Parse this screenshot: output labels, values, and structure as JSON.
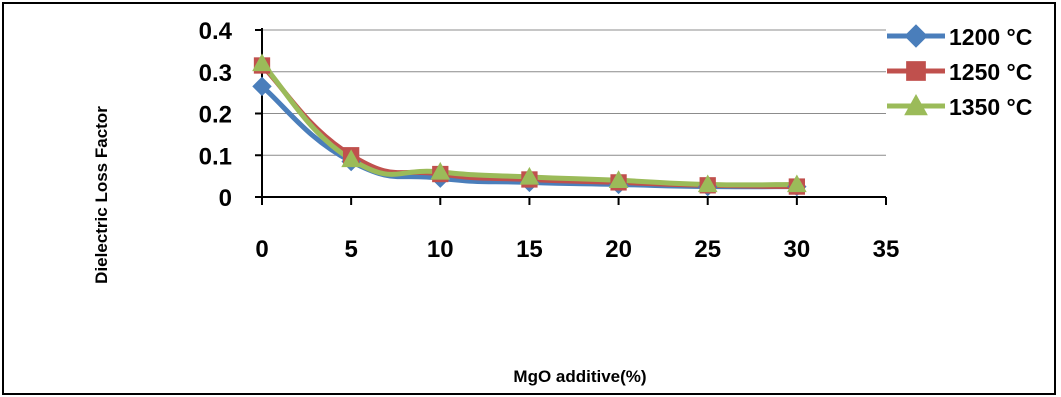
{
  "chart_data": {
    "type": "line",
    "title": "",
    "xlabel": "MgO additive(%)",
    "ylabel": "Dielectric Loss Factor",
    "xlim": [
      0,
      35
    ],
    "ylim": [
      0,
      0.4
    ],
    "x_ticks": [
      "0",
      "5",
      "10",
      "15",
      "20",
      "25",
      "30",
      "35"
    ],
    "y_ticks": [
      "0",
      "0.1",
      "0.2",
      "0.3",
      "0.4"
    ],
    "grid": true,
    "legend_position": "right",
    "smooth": true,
    "series": [
      {
        "name": "1200 °C",
        "color": "#4a7ebb",
        "marker": "diamond",
        "x": [
          0,
          5,
          10,
          15,
          20,
          25,
          30
        ],
        "y": [
          0.265,
          0.085,
          0.045,
          0.035,
          0.03,
          0.025,
          0.025
        ]
      },
      {
        "name": "1250 °C",
        "color": "#c0504d",
        "marker": "square",
        "x": [
          0,
          5,
          10,
          15,
          20,
          25,
          30
        ],
        "y": [
          0.315,
          0.1,
          0.055,
          0.042,
          0.035,
          0.028,
          0.025
        ]
      },
      {
        "name": "1350 °C",
        "color": "#9bbb59",
        "marker": "triangle",
        "x": [
          0,
          5,
          10,
          15,
          20,
          25,
          30
        ],
        "y": [
          0.32,
          0.09,
          0.06,
          0.048,
          0.04,
          0.03,
          0.03
        ]
      }
    ]
  }
}
